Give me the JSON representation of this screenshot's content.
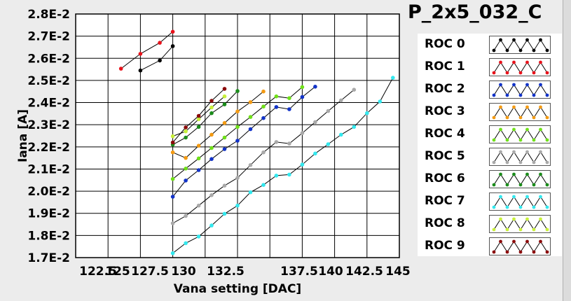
{
  "chart_data": {
    "type": "line",
    "title": "P_2x5_032_C",
    "xlabel": "Vana setting [DAC]",
    "ylabel": "Iana [A]",
    "xlim": [
      120,
      145
    ],
    "ylim": [
      0.017,
      0.028
    ],
    "x_tick_labels": [
      "122.5",
      "125",
      "127.5",
      "130",
      "132.5",
      "137.5",
      "140",
      "142.5",
      "145"
    ],
    "y_tick_labels": [
      "1.7E-2",
      "1.8E-2",
      "1.9E-2",
      "2.0E-2",
      "2.1E-2",
      "2.2E-2",
      "2.3E-2",
      "2.4E-2",
      "2.5E-2",
      "2.6E-2",
      "2.7E-2",
      "2.8E-2"
    ],
    "grid": true,
    "legend_position": "right",
    "series": [
      {
        "name": "ROC 0",
        "color": "#000000",
        "x": [
          125,
          126.5,
          127.5
        ],
        "y": [
          0.02545,
          0.0259,
          0.02655
        ]
      },
      {
        "name": "ROC 1",
        "color": "#e8121b",
        "x": [
          123.5,
          125,
          126.5,
          127.5
        ],
        "y": [
          0.02553,
          0.0262,
          0.0267,
          0.0272
        ]
      },
      {
        "name": "ROC 2",
        "color": "#1233c8",
        "x": [
          127.5,
          128.5,
          129.5,
          130.5,
          131.5,
          132.5,
          133.5,
          134.5,
          135.5,
          136.5,
          137.5,
          138.5
        ],
        "y": [
          0.01975,
          0.02048,
          0.02095,
          0.02145,
          0.0219,
          0.02228,
          0.0228,
          0.0233,
          0.0238,
          0.0237,
          0.02425,
          0.02472
        ]
      },
      {
        "name": "ROC 3",
        "color": "#f39a13",
        "x": [
          127.5,
          128.5,
          129.5,
          130.5,
          131.5,
          132.5,
          133.5,
          134.5
        ],
        "y": [
          0.02175,
          0.0215,
          0.02205,
          0.02255,
          0.02308,
          0.0236,
          0.02402,
          0.0245
        ]
      },
      {
        "name": "ROC 4",
        "color": "#6fe018",
        "x": [
          127.5,
          128.5,
          129.5,
          130.5,
          131.5,
          132.5,
          133.5,
          134.5,
          135.5,
          136.5,
          137.5
        ],
        "y": [
          0.02055,
          0.02102,
          0.02148,
          0.02195,
          0.02242,
          0.0229,
          0.02335,
          0.02382,
          0.02428,
          0.0242,
          0.0247
        ]
      },
      {
        "name": "ROC 5",
        "color": "#a9a9a9",
        "x": [
          127.5,
          128.5,
          129.5,
          130.5,
          131.5,
          132.5,
          133.5,
          134.5,
          135.5,
          136.5,
          137.5,
          138.5,
          139.5,
          140.5,
          141.5
        ],
        "y": [
          0.01855,
          0.01888,
          0.01935,
          0.01982,
          0.02025,
          0.0206,
          0.02118,
          0.02175,
          0.02222,
          0.02215,
          0.02262,
          0.02312,
          0.02362,
          0.0241,
          0.02458
        ]
      },
      {
        "name": "ROC 6",
        "color": "#1a8c1a",
        "x": [
          127.5,
          128.5,
          129.5,
          130.5,
          131.5,
          132.5
        ],
        "y": [
          0.0221,
          0.02242,
          0.0229,
          0.02352,
          0.02392,
          0.02452
        ]
      },
      {
        "name": "ROC 7",
        "color": "#33e8ee",
        "x": [
          127.5,
          128.5,
          129.5,
          130.5,
          131.5,
          132.5,
          133.5,
          134.5,
          135.5,
          136.5,
          137.5,
          138.5,
          139.5,
          140.5,
          141.5,
          142.5,
          143.5,
          144.5
        ],
        "y": [
          0.0172,
          0.01765,
          0.01795,
          0.01845,
          0.01898,
          0.01935,
          0.01995,
          0.02028,
          0.0207,
          0.02075,
          0.0212,
          0.0217,
          0.02212,
          0.02255,
          0.0229,
          0.02352,
          0.02405,
          0.02512
        ]
      },
      {
        "name": "ROC 8",
        "color": "#c8f03a",
        "x": [
          127.5,
          128.5,
          129.5,
          130.5,
          131.5
        ],
        "y": [
          0.02248,
          0.0227,
          0.02325,
          0.02378,
          0.02428
        ]
      },
      {
        "name": "ROC 9",
        "color": "#8b0a0a",
        "x": [
          127.5,
          128.5,
          129.5,
          130.5,
          131.5
        ],
        "y": [
          0.0222,
          0.02288,
          0.0234,
          0.02408,
          0.02462
        ]
      }
    ]
  }
}
